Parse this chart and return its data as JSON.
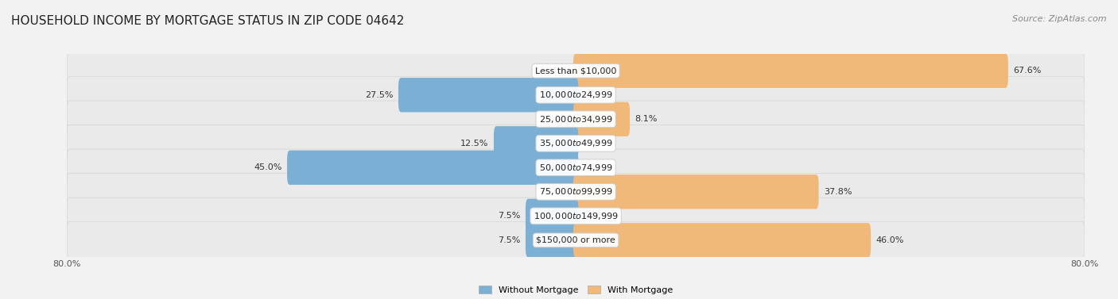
{
  "title": "HOUSEHOLD INCOME BY MORTGAGE STATUS IN ZIP CODE 04642",
  "source": "Source: ZipAtlas.com",
  "categories": [
    "Less than $10,000",
    "$10,000 to $24,999",
    "$25,000 to $34,999",
    "$35,000 to $49,999",
    "$50,000 to $74,999",
    "$75,000 to $99,999",
    "$100,000 to $149,999",
    "$150,000 or more"
  ],
  "without_mortgage": [
    0.0,
    27.5,
    0.0,
    12.5,
    45.0,
    0.0,
    7.5,
    7.5
  ],
  "with_mortgage": [
    67.6,
    0.0,
    8.1,
    0.0,
    0.0,
    37.8,
    0.0,
    46.0
  ],
  "color_without": "#7BAFD4",
  "color_with": "#F0B97A",
  "xlim": 80.0,
  "title_fontsize": 11,
  "label_fontsize": 8.0,
  "axis_fontsize": 8.0,
  "source_fontsize": 8.0
}
